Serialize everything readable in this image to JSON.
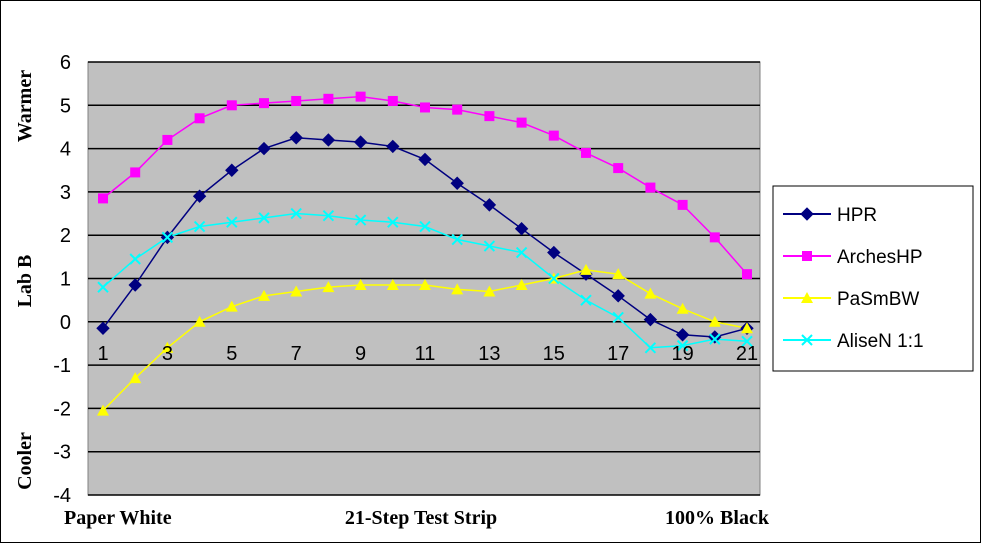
{
  "chart_data": {
    "type": "line",
    "x": [
      1,
      2,
      3,
      4,
      5,
      6,
      7,
      8,
      9,
      10,
      11,
      12,
      13,
      14,
      15,
      16,
      17,
      18,
      19,
      20,
      21
    ],
    "x_tick_labels": [
      "1",
      "3",
      "5",
      "7",
      "9",
      "11",
      "13",
      "15",
      "17",
      "19",
      "21"
    ],
    "y_tick_labels": [
      "6",
      "5",
      "4",
      "3",
      "2",
      "1",
      "0",
      "-1",
      "-2",
      "-3",
      "-4"
    ],
    "ylim": [
      -4,
      6
    ],
    "ylabel_top": "Warmer",
    "ylabel_mid": "Lab B",
    "ylabel_bottom": "Cooler",
    "xlabel_left": "Paper White",
    "xlabel_center": "21-Step Test Strip",
    "xlabel_right": "100% Black",
    "grid": true,
    "legend_position": "right",
    "plot_background": "#c0c0c0",
    "series": [
      {
        "name": "HPR",
        "color": "#000080",
        "marker": "diamond",
        "values": [
          -0.15,
          0.85,
          1.95,
          2.9,
          3.5,
          4.0,
          4.25,
          4.2,
          4.15,
          4.05,
          3.75,
          3.2,
          2.7,
          2.15,
          1.6,
          1.1,
          0.6,
          0.05,
          -0.3,
          -0.35,
          -0.15
        ]
      },
      {
        "name": "ArchesHP",
        "color": "#ff00ff",
        "marker": "square",
        "values": [
          2.85,
          3.45,
          4.2,
          4.7,
          5.0,
          5.05,
          5.1,
          5.15,
          5.2,
          5.1,
          4.95,
          4.9,
          4.75,
          4.6,
          4.3,
          3.9,
          3.55,
          3.1,
          2.7,
          1.95,
          1.1
        ]
      },
      {
        "name": "PaSmBW",
        "color": "#ffff00",
        "marker": "triangle",
        "values": [
          -2.05,
          -1.3,
          -0.6,
          0.0,
          0.35,
          0.6,
          0.7,
          0.8,
          0.85,
          0.85,
          0.85,
          0.75,
          0.7,
          0.85,
          1.0,
          1.2,
          1.1,
          0.65,
          0.3,
          0.0,
          -0.15
        ]
      },
      {
        "name": "AliseN 1:1",
        "color": "#00ffff",
        "marker": "x",
        "values": [
          0.8,
          1.45,
          1.95,
          2.2,
          2.3,
          2.4,
          2.5,
          2.45,
          2.35,
          2.3,
          2.2,
          1.9,
          1.75,
          1.6,
          1.0,
          0.5,
          0.1,
          -0.6,
          -0.55,
          -0.4,
          -0.45
        ]
      }
    ]
  }
}
